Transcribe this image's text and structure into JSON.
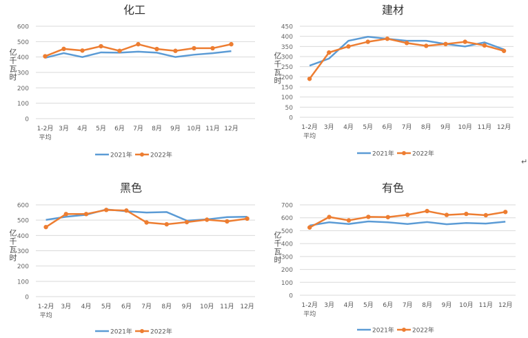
{
  "chart_data": [
    {
      "type": "line",
      "title": "化工",
      "ylabel": "亿千瓦时",
      "ylim": [
        0,
        600
      ],
      "yticks": [
        0,
        100,
        200,
        300,
        400,
        500,
        600
      ],
      "categories": [
        "1-2月\n平均",
        "3月",
        "4月",
        "5月",
        "6月",
        "7月",
        "8月",
        "9月",
        "10月",
        "11月",
        "12月"
      ],
      "series": [
        {
          "name": "2021年",
          "color": "#5b9bd5",
          "values": [
            395,
            425,
            400,
            430,
            428,
            435,
            428,
            400,
            415,
            425,
            438
          ]
        },
        {
          "name": "2022年",
          "color": "#ed7d31",
          "values": [
            405,
            453,
            442,
            470,
            440,
            483,
            452,
            440,
            457,
            457,
            483
          ]
        }
      ],
      "grid": true,
      "legend": "bottom"
    },
    {
      "type": "line",
      "title": "建材",
      "ylabel": "亿千瓦时",
      "ylim": [
        0,
        450
      ],
      "yticks": [
        0,
        50,
        100,
        150,
        200,
        250,
        300,
        350,
        400,
        450
      ],
      "categories": [
        "1-2月\n平均",
        "3月",
        "4月",
        "5月",
        "6月",
        "7月",
        "8月",
        "9月",
        "10月",
        "11月",
        "12月"
      ],
      "series": [
        {
          "name": "2021年",
          "color": "#5b9bd5",
          "values": [
            255,
            290,
            378,
            398,
            388,
            378,
            378,
            362,
            350,
            370,
            335
          ]
        },
        {
          "name": "2022年",
          "color": "#ed7d31",
          "values": [
            190,
            320,
            350,
            373,
            388,
            367,
            353,
            362,
            373,
            355,
            328
          ]
        }
      ],
      "grid": true,
      "legend": "bottom"
    },
    {
      "type": "line",
      "title": "黑色",
      "ylabel": "亿千瓦时",
      "ylim": [
        0,
        600
      ],
      "yticks": [
        0,
        100,
        200,
        300,
        400,
        500,
        600
      ],
      "categories": [
        "1-2月\n平均",
        "3月",
        "4月",
        "5月",
        "6月",
        "7月",
        "8月",
        "9月",
        "10月",
        "11月",
        "12月"
      ],
      "series": [
        {
          "name": "2021年",
          "color": "#5b9bd5",
          "values": [
            502,
            522,
            535,
            570,
            558,
            550,
            553,
            497,
            505,
            520,
            522
          ]
        },
        {
          "name": "2022年",
          "color": "#ed7d31",
          "values": [
            455,
            540,
            540,
            567,
            563,
            485,
            473,
            487,
            503,
            492,
            510
          ]
        }
      ],
      "grid": true,
      "legend": "bottom"
    },
    {
      "type": "line",
      "title": "有色",
      "ylabel": "亿千瓦时",
      "ylim": [
        0,
        700
      ],
      "yticks": [
        0,
        100,
        200,
        300,
        400,
        500,
        600,
        700
      ],
      "categories": [
        "1-2月\n平均",
        "3月",
        "4月",
        "5月",
        "6月",
        "7月",
        "8月",
        "9月",
        "10月",
        "11月",
        "12月"
      ],
      "series": [
        {
          "name": "2021年",
          "color": "#5b9bd5",
          "values": [
            540,
            565,
            552,
            572,
            565,
            552,
            567,
            550,
            560,
            555,
            570
          ]
        },
        {
          "name": "2022年",
          "color": "#ed7d31",
          "values": [
            525,
            606,
            580,
            607,
            605,
            623,
            652,
            622,
            630,
            620,
            645
          ]
        }
      ],
      "grid": true,
      "legend": "bottom"
    }
  ],
  "paragraph_mark": "↵"
}
